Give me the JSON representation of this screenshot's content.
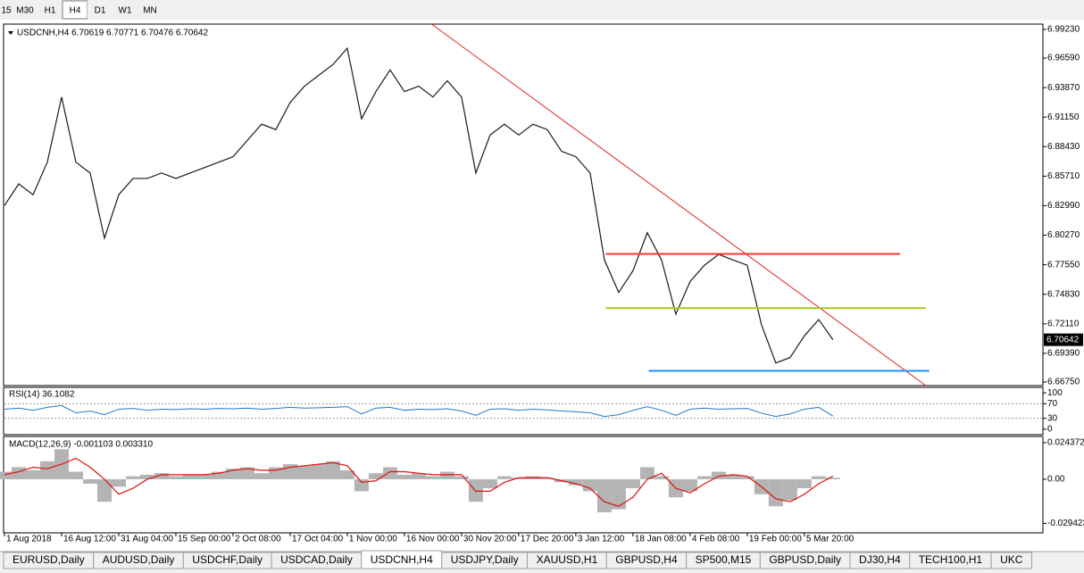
{
  "toolbar": {
    "timeframes": [
      "15",
      "M30",
      "H1",
      "H4",
      "D1",
      "W1",
      "MN"
    ],
    "active_index": 3
  },
  "tabs": {
    "items": [
      "EURUSD,Daily",
      "AUDUSD,Daily",
      "USDCHF,Daily",
      "USDCAD,Daily",
      "USDCNH,H4",
      "USDJPY,Daily",
      "XAUUSD,H1",
      "GBPUSD,H4",
      "SP500,M15",
      "GBPUSD,Daily",
      "DJ30,H4",
      "TECH100,H1",
      "UKC"
    ],
    "active_index": 4
  },
  "chart_data": [
    {
      "type": "line",
      "title": "USDCNH,H4  6.70619 6.70771 6.70476 6.70642",
      "color": "#1a1a1a",
      "categories": [
        "1 Aug 2018",
        null,
        null,
        null,
        "16 Aug 12:00",
        null,
        null,
        null,
        "31 Aug 04:00",
        null,
        null,
        null,
        "15 Sep 00:00",
        null,
        null,
        null,
        "2 Oct 08:00",
        null,
        null,
        null,
        "17 Oct 04:00",
        null,
        null,
        null,
        "1 Nov 00:00",
        null,
        null,
        null,
        "16 Nov 00:00",
        null,
        null,
        null,
        "30 Nov 20:00",
        null,
        null,
        null,
        "17 Dec 20:00",
        null,
        null,
        null,
        "3 Jan 12:00",
        null,
        null,
        null,
        "18 Jan 08:00",
        null,
        null,
        null,
        "4 Feb 08:00",
        null,
        null,
        null,
        "19 Feb 00:00",
        null,
        null,
        null,
        "5 Mar 20:00",
        null,
        null
      ],
      "values": [
        6.83,
        6.85,
        6.84,
        6.87,
        6.93,
        6.87,
        6.86,
        6.8,
        6.84,
        6.855,
        6.855,
        6.86,
        6.855,
        6.86,
        6.865,
        6.87,
        6.875,
        6.89,
        6.905,
        6.9,
        6.925,
        6.94,
        6.95,
        6.96,
        6.975,
        6.91,
        6.935,
        6.955,
        6.935,
        6.94,
        6.93,
        6.945,
        6.93,
        6.86,
        6.895,
        6.905,
        6.895,
        6.905,
        6.9,
        6.88,
        6.875,
        6.86,
        6.78,
        6.75,
        6.77,
        6.805,
        6.78,
        6.73,
        6.76,
        6.775,
        6.785,
        6.78,
        6.775,
        6.72,
        6.685,
        6.69,
        6.71,
        6.725,
        6.70642
      ],
      "xlim": [
        0,
        72.7
      ],
      "ylim": [
        6.6642,
        6.9972
      ],
      "yticks": [
        {
          "value": 6.9923,
          "label": "6.99230"
        },
        {
          "value": 6.9659,
          "label": "6.96590"
        },
        {
          "value": 6.9387,
          "label": "6.93870"
        },
        {
          "value": 6.9115,
          "label": "6.91150"
        },
        {
          "value": 6.8843,
          "label": "6.88430"
        },
        {
          "value": 6.8571,
          "label": "6.85710"
        },
        {
          "value": 6.8299,
          "label": "6.82990"
        },
        {
          "value": 6.8027,
          "label": "6.80270"
        },
        {
          "value": 6.7755,
          "label": "6.77550"
        },
        {
          "value": 6.7483,
          "label": "6.74830"
        },
        {
          "value": 6.7211,
          "label": "6.72110"
        },
        {
          "value": 6.6939,
          "label": "6.69390"
        },
        {
          "value": 6.6675,
          "label": "6.66750"
        }
      ],
      "last_price": 6.70642,
      "trendline": {
        "x": [
          29.9,
          64.5
        ],
        "y": [
          6.9972,
          6.6642
        ],
        "color": "#e02020"
      },
      "levels": [
        {
          "value": 6.7855,
          "x": [
            42.1,
            62.7
          ],
          "color": "#ff3030"
        },
        {
          "value": 6.7355,
          "x": [
            42.1,
            64.5
          ],
          "color": "#a8c820"
        },
        {
          "value": 6.6778,
          "x": [
            45.1,
            64.75
          ],
          "color": "#1e90ff"
        }
      ]
    },
    {
      "type": "rsi",
      "title": "RSI(14) 36.1082",
      "color": "#1e78c8",
      "values": [
        55,
        58,
        52,
        60,
        65,
        45,
        50,
        40,
        55,
        57,
        52,
        55,
        54,
        56,
        55,
        57,
        56,
        58,
        55,
        57,
        60,
        58,
        59,
        60,
        62,
        42,
        58,
        60,
        52,
        55,
        54,
        56,
        50,
        38,
        55,
        56,
        52,
        55,
        53,
        50,
        48,
        45,
        35,
        40,
        52,
        62,
        52,
        38,
        55,
        58,
        55,
        56,
        57,
        44,
        35,
        42,
        55,
        60,
        36.1
      ],
      "xlim": [
        0,
        72.7
      ],
      "ylim": [
        -15,
        115
      ],
      "yticks": [
        100,
        70,
        30,
        0
      ],
      "levels": [
        70,
        30
      ]
    },
    {
      "type": "macd",
      "title": "MACD(12,26,9) -0.001103 0.003310",
      "histogram": {
        "color": "#b4b4b4",
        "values": [
          0.005,
          0.008,
          0.006,
          0.012,
          0.02,
          0.005,
          -0.003,
          -0.015,
          -0.005,
          0.002,
          0.003,
          0.004,
          0.002,
          0.003,
          0.003,
          0.005,
          0.007,
          0.008,
          0.004,
          0.008,
          0.01,
          0.009,
          0.01,
          0.012,
          0.006,
          -0.008,
          0.004,
          0.008,
          0.003,
          0.004,
          0.002,
          0.005,
          0.002,
          -0.015,
          -0.006,
          0.002,
          0.001,
          0.002,
          0.001,
          -0.002,
          -0.004,
          -0.008,
          -0.022,
          -0.02,
          -0.006,
          0.008,
          0.002,
          -0.012,
          -0.008,
          0.002,
          0.005,
          0.003,
          0.002,
          -0.01,
          -0.018,
          -0.014,
          -0.006,
          0.002,
          0.001
        ]
      },
      "signal": {
        "color": "#e01010",
        "values": [
          0.003,
          0.005,
          0.008,
          0.007,
          0.01,
          0.014,
          0.008,
          0.0,
          -0.01,
          -0.006,
          0.0,
          0.003,
          0.003,
          0.003,
          0.003,
          0.004,
          0.006,
          0.007,
          0.006,
          0.006,
          0.008,
          0.009,
          0.01,
          0.011,
          0.009,
          -0.002,
          -0.001,
          0.005,
          0.005,
          0.004,
          0.003,
          0.003,
          0.003,
          -0.008,
          -0.008,
          -0.002,
          0.001,
          0.001,
          0.001,
          -0.001,
          -0.003,
          -0.006,
          -0.015,
          -0.018,
          -0.012,
          0.0,
          0.004,
          -0.006,
          -0.009,
          -0.003,
          0.002,
          0.003,
          0.002,
          -0.005,
          -0.013,
          -0.015,
          -0.01,
          -0.003,
          0.002
        ]
      },
      "xlim": [
        0,
        72.7
      ],
      "ylim": [
        -0.0357,
        0.0285
      ],
      "yticks": [
        0.024372,
        {
          "value": 0,
          "label": "0.00"
        },
        -0.029423
      ]
    }
  ]
}
